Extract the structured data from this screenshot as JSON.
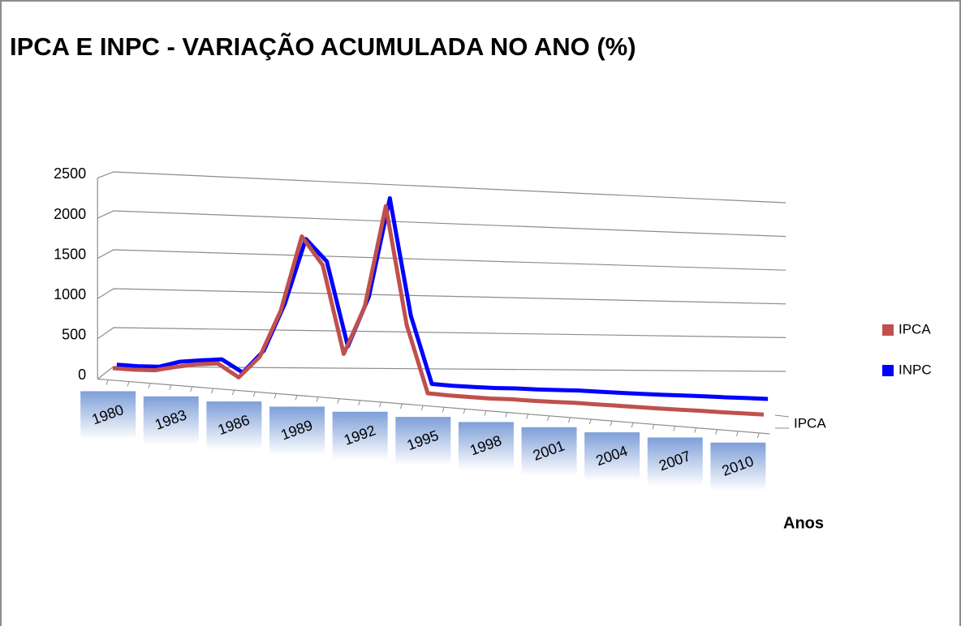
{
  "chart_data": {
    "type": "line3d",
    "title": "IPCA E INPC - VARIAÇÃO ACUMULADA NO ANO (%)",
    "x_label": "Anos",
    "depth_label": "IPCA",
    "categories": [
      "1980",
      null,
      null,
      "1983",
      null,
      null,
      "1986",
      null,
      null,
      "1989",
      null,
      null,
      "1992",
      null,
      null,
      "1995",
      null,
      null,
      "1998",
      null,
      null,
      "2001",
      null,
      null,
      "2004",
      null,
      null,
      "2007",
      null,
      null,
      "2010",
      null
    ],
    "series": [
      {
        "name": "IPCA",
        "color": "#c0504d",
        "values": [
          99,
          96,
          105,
          164,
          215,
          242,
          80,
          363,
          980,
          1973,
          1621,
          473,
          1119,
          2477,
          916,
          22,
          10,
          5,
          2,
          9,
          6,
          8,
          12,
          9,
          8,
          6,
          3,
          4,
          6,
          4,
          6,
          6
        ]
      },
      {
        "name": "INPC",
        "color": "#0000ff",
        "values": [
          100,
          93,
          97,
          173,
          203,
          228,
          68,
          367,
          993,
          1863,
          1585,
          475,
          1149,
          2489,
          929,
          22,
          9,
          4,
          2,
          8,
          5,
          9,
          15,
          10,
          6,
          5,
          3,
          5,
          6,
          4,
          6,
          6
        ]
      }
    ],
    "ylim": [
      0,
      2500
    ],
    "yticks": [
      0,
      500,
      1000,
      1500,
      2000,
      2500
    ],
    "grid": true,
    "legend": "right"
  }
}
